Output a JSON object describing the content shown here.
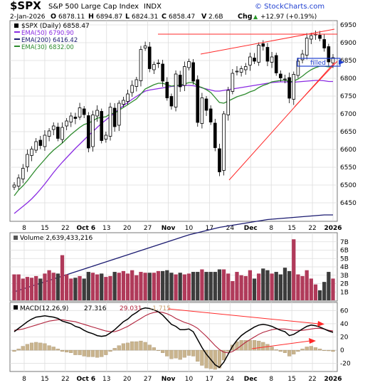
{
  "colors": {
    "ema50": "#8a2be2",
    "ema200": "#1a1a70",
    "ema30": "#2e8b2e",
    "trendline": "#ff2a2a",
    "vol_up": "#b03a5a",
    "vol_down": "#3c3c3c",
    "macd_line": "#000000",
    "macd_signal": "#b0203a",
    "macd_hist": "#c9b48e",
    "annotation_box": "#1f3fd0",
    "grid": "#dddddd"
  },
  "header": {
    "symbol": "$SPX",
    "name": "S&P 500 Large Cap Index",
    "exchange": "INDX",
    "date": "2-Jan-2026",
    "open_label": "O",
    "open": "6878.11",
    "high_label": "H",
    "high": "6894.87",
    "low_label": "L",
    "low": "6824.31",
    "close_label": "C",
    "close": "6858.47",
    "volume_label": "V",
    "volume": "2.6B",
    "chg_label": "Chg",
    "chg": "+12.97 (+0.19%)",
    "chg_arrow": "▲"
  },
  "watermark": "© StockCharts.com",
  "legend": {
    "price": "$SPX (Daily) 6858.47",
    "ema50": "EMA(50) 6790.90",
    "ema200": "EMA(200) 6416.42",
    "ema30": "EMA(30) 6832.00"
  },
  "annotation": {
    "text": "filled"
  },
  "volume_panel": {
    "label": "Volume 2,639,433,216"
  },
  "macd_panel": {
    "label": "MACD(12,26,9)",
    "macd": "27.316",
    "signal": "29.031",
    "hist": "-1.715"
  },
  "x_axis": [
    "8",
    "15",
    "22",
    "Oct 6",
    "13",
    "20",
    "27",
    "Nov",
    "10",
    "17",
    "24",
    "Dec",
    "8",
    "15",
    "22",
    "2026"
  ],
  "chart_data": [
    {
      "type": "candlestick",
      "title": "$SPX (Daily)",
      "ylim": [
        6400,
        6960
      ],
      "y_ticks": [
        6450,
        6500,
        6550,
        6600,
        6650,
        6700,
        6750,
        6800,
        6850,
        6900,
        6950
      ],
      "close": [
        6500,
        6520,
        6547,
        6586,
        6601,
        6622,
        6611,
        6640,
        6652,
        6666,
        6631,
        6662,
        6680,
        6694,
        6687,
        6717,
        6698,
        6604,
        6697,
        6710,
        6625,
        6640,
        6719,
        6664,
        6730,
        6738,
        6756,
        6780,
        6796,
        6881,
        6891,
        6827,
        6839,
        6843,
        6792,
        6745,
        6722,
        6812,
        6776,
        6833,
        6847,
        6792,
        6676,
        6745,
        6710,
        6677,
        6605,
        6537,
        6700,
        6766,
        6814,
        6820,
        6827,
        6833,
        6860,
        6848,
        6893,
        6890,
        6848,
        6860,
        6815,
        6801,
        6798,
        6744,
        6811,
        6848,
        6868,
        6913,
        6920,
        6924,
        6912,
        6885,
        6846,
        6858
      ]
    },
    {
      "type": "line",
      "title": "EMA(50)",
      "values": [
        6420,
        6430,
        6440,
        6450,
        6461,
        6474,
        6488,
        6503,
        6519,
        6535,
        6550,
        6564,
        6577,
        6590,
        6603,
        6615,
        6627,
        6639,
        6650,
        6662,
        6673,
        6683,
        6693,
        6703,
        6713,
        6723,
        6732,
        6741,
        6749,
        6757,
        6764,
        6767,
        6769,
        6771,
        6773,
        6775,
        6777,
        6778,
        6779,
        6780,
        6780,
        6779,
        6777,
        6773,
        6770,
        6767,
        6764,
        6764,
        6766,
        6768,
        6770,
        6772,
        6774,
        6776,
        6778,
        6780,
        6782,
        6784,
        6786,
        6788,
        6789,
        6790,
        6790,
        6789,
        6789,
        6790,
        6791,
        6792,
        6793,
        6794,
        6794,
        6793,
        6791,
        6791
      ]
    },
    {
      "type": "line",
      "title": "EMA(200)",
      "values": [
        6200,
        6204,
        6208,
        6212,
        6216,
        6220,
        6224,
        6228,
        6232,
        6236,
        6240,
        6244,
        6248,
        6252,
        6256,
        6260,
        6264,
        6268,
        6272,
        6276,
        6280,
        6284,
        6288,
        6292,
        6296,
        6300,
        6304,
        6308,
        6312,
        6316,
        6320,
        6324,
        6328,
        6332,
        6336,
        6340,
        6344,
        6348,
        6352,
        6356,
        6360,
        6363,
        6366,
        6369,
        6372,
        6375,
        6378,
        6381,
        6383,
        6385,
        6387,
        6389,
        6391,
        6393,
        6395,
        6397,
        6399,
        6401,
        6403,
        6404,
        6405,
        6406,
        6407,
        6408,
        6409,
        6410,
        6411,
        6412,
        6413,
        6414,
        6415,
        6416,
        6416,
        6416
      ]
    },
    {
      "type": "line",
      "title": "EMA(30)",
      "values": [
        6470,
        6486,
        6498,
        6512,
        6528,
        6544,
        6558,
        6572,
        6586,
        6598,
        6608,
        6618,
        6630,
        6642,
        6652,
        6662,
        6670,
        6674,
        6680,
        6688,
        6690,
        6692,
        6700,
        6702,
        6710,
        6718,
        6726,
        6734,
        6742,
        6756,
        6770,
        6776,
        6782,
        6786,
        6786,
        6782,
        6778,
        6780,
        6780,
        6784,
        6788,
        6788,
        6778,
        6774,
        6768,
        6760,
        6746,
        6732,
        6730,
        6736,
        6742,
        6748,
        6752,
        6756,
        6762,
        6766,
        6774,
        6780,
        6784,
        6790,
        6792,
        6794,
        6795,
        6790,
        6792,
        6798,
        6806,
        6816,
        6824,
        6830,
        6834,
        6834,
        6832,
        6832
      ]
    },
    {
      "type": "bar",
      "title": "Volume",
      "unit": "B",
      "ylim": [
        0,
        8
      ],
      "y_ticks": [
        1,
        2,
        3,
        4,
        5,
        6,
        7
      ],
      "values": [
        3.1,
        3.1,
        2.6,
        2.8,
        2.7,
        2.9,
        2.6,
        3.2,
        3.6,
        3.3,
        3.2,
        5.4,
        3.1,
        2.6,
        2.7,
        2.9,
        2.6,
        3.4,
        3.3,
        3.1,
        3.2,
        2.8,
        2.9,
        3.4,
        3.3,
        3.5,
        3.2,
        3.6,
        3.0,
        3.4,
        3.3,
        3.3,
        3.3,
        3.5,
        3.5,
        3.6,
        3.3,
        3.1,
        3.3,
        3.1,
        3.2,
        3.4,
        3.4,
        3.7,
        3.4,
        3.4,
        3.4,
        3.7,
        3.7,
        3.2,
        2.3,
        3.4,
        3.0,
        2.9,
        3.6,
        2.6,
        3.2,
        3.8,
        3.6,
        3.2,
        3.4,
        3.1,
        3.9,
        3.5,
        7.3,
        3.1,
        2.9,
        3.6,
        2.6,
        1.9,
        1.2,
        2.2,
        3.4,
        2.6
      ]
    },
    {
      "type": "line",
      "title": "MACD(12,26,9)",
      "ylim": [
        -30,
        70
      ],
      "y_ticks": [
        -20,
        0,
        20,
        40,
        60
      ],
      "macd": [
        28,
        33,
        38,
        43,
        47,
        50,
        51,
        52,
        51,
        50,
        48,
        44,
        42,
        40,
        36,
        34,
        30,
        27,
        25,
        22,
        21,
        22,
        26,
        31,
        37,
        43,
        47,
        53,
        57,
        62,
        64,
        63,
        61,
        58,
        53,
        46,
        39,
        36,
        31,
        31,
        32,
        28,
        16,
        4,
        -6,
        -14,
        -22,
        -26,
        -18,
        -6,
        6,
        15,
        22,
        27,
        31,
        35,
        38,
        39,
        38,
        36,
        33,
        30,
        28,
        22,
        24,
        28,
        32,
        36,
        38,
        37,
        35,
        32,
        29,
        27
      ],
      "signal": [
        30,
        31,
        32,
        34,
        36,
        38,
        40,
        42,
        44,
        45,
        46,
        46,
        45,
        44,
        43,
        41,
        39,
        37,
        35,
        33,
        31,
        29,
        28,
        28,
        30,
        33,
        36,
        40,
        44,
        48,
        52,
        55,
        57,
        58,
        57,
        55,
        52,
        48,
        45,
        42,
        40,
        37,
        33,
        27,
        21,
        14,
        7,
        1,
        -3,
        -4,
        -2,
        2,
        7,
        12,
        16,
        20,
        24,
        27,
        29,
        31,
        32,
        32,
        32,
        31,
        30,
        30,
        30,
        31,
        32,
        33,
        33,
        32,
        30,
        29
      ],
      "hist": [
        -2,
        2,
        6,
        9,
        11,
        12,
        11,
        10,
        7,
        5,
        2,
        -2,
        -3,
        -4,
        -7,
        -7,
        -9,
        -10,
        -10,
        -11,
        -10,
        -7,
        -2,
        3,
        7,
        10,
        11,
        13,
        13,
        14,
        12,
        8,
        4,
        0,
        -4,
        -9,
        -13,
        -12,
        -14,
        -11,
        -8,
        -9,
        -17,
        -23,
        -27,
        -28,
        -29,
        -27,
        -15,
        -2,
        8,
        13,
        15,
        15,
        15,
        15,
        14,
        12,
        9,
        5,
        1,
        -2,
        -4,
        -9,
        -6,
        -2,
        2,
        5,
        6,
        4,
        2,
        0,
        -1,
        -2
      ]
    }
  ]
}
